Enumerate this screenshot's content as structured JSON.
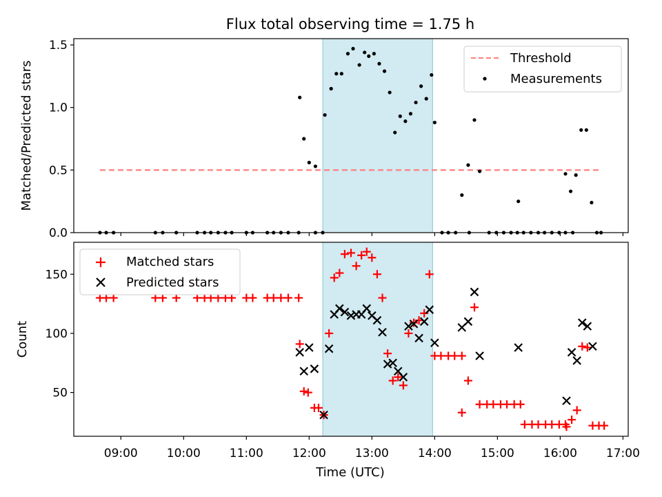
{
  "chart_data": [
    {
      "type": "scatter",
      "title": "Flux total observing time = 1.75 h",
      "xlabel": "",
      "ylabel": "Matched/Predicted stars",
      "ylim": [
        0,
        1.55
      ],
      "yticks": [
        "0.0",
        "0.5",
        "1.0",
        "1.5"
      ],
      "highlight_span": [
        "12:13",
        "13:58"
      ],
      "legend": {
        "position": "upper-right",
        "entries": [
          "Threshold",
          "Measurements"
        ]
      },
      "threshold": {
        "name": "Threshold",
        "value": 0.5,
        "x_start": "08:40",
        "x_end": "16:38",
        "color": "#ff7f7f",
        "style": "dashed"
      },
      "series": [
        {
          "name": "Measurements",
          "color": "#000000",
          "points": [
            [
              "08:40",
              0
            ],
            [
              "08:46",
              0
            ],
            [
              "08:53",
              0
            ],
            [
              "09:33",
              0
            ],
            [
              "09:40",
              0
            ],
            [
              "09:53",
              0
            ],
            [
              "10:13",
              0
            ],
            [
              "10:20",
              0
            ],
            [
              "10:26",
              0
            ],
            [
              "10:33",
              0
            ],
            [
              "10:40",
              0
            ],
            [
              "10:46",
              0
            ],
            [
              "11:00",
              0
            ],
            [
              "11:06",
              0
            ],
            [
              "11:20",
              0
            ],
            [
              "11:26",
              0
            ],
            [
              "11:33",
              0
            ],
            [
              "11:40",
              0
            ],
            [
              "11:50",
              0
            ],
            [
              "12:06",
              0
            ],
            [
              "12:13",
              0
            ],
            [
              "11:51",
              1.08
            ],
            [
              "11:55",
              0.75
            ],
            [
              "11:60",
              0.56
            ],
            [
              "12:06",
              0.53
            ],
            [
              "12:15",
              0.94
            ],
            [
              "12:21",
              1.15
            ],
            [
              "12:26",
              1.27
            ],
            [
              "12:31",
              1.27
            ],
            [
              "12:37",
              1.43
            ],
            [
              "12:42",
              1.47
            ],
            [
              "12:48",
              1.34
            ],
            [
              "12:53",
              1.44
            ],
            [
              "12:57",
              1.41
            ],
            [
              "13:02",
              1.43
            ],
            [
              "13:07",
              1.35
            ],
            [
              "13:12",
              1.29
            ],
            [
              "13:17",
              1.12
            ],
            [
              "13:22",
              0.8
            ],
            [
              "13:27",
              0.93
            ],
            [
              "13:32",
              0.89
            ],
            [
              "13:37",
              0.95
            ],
            [
              "13:42",
              1.04
            ],
            [
              "13:47",
              1.17
            ],
            [
              "13:52",
              1.07
            ],
            [
              "13:57",
              1.26
            ],
            [
              "14:00",
              0.88
            ],
            [
              "14:07",
              0
            ],
            [
              "14:13",
              0
            ],
            [
              "14:20",
              0
            ],
            [
              "14:26",
              0.3
            ],
            [
              "14:32",
              0.54
            ],
            [
              "14:33",
              0
            ],
            [
              "14:38",
              0.9
            ],
            [
              "14:43",
              0.49
            ],
            [
              "14:52",
              0
            ],
            [
              "14:59",
              0
            ],
            [
              "15:06",
              0
            ],
            [
              "15:13",
              0
            ],
            [
              "15:19",
              0
            ],
            [
              "15:25",
              0
            ],
            [
              "15:32",
              0
            ],
            [
              "15:20",
              0.25
            ],
            [
              "15:39",
              0
            ],
            [
              "15:45",
              0
            ],
            [
              "15:52",
              0
            ],
            [
              "15:59",
              0
            ],
            [
              "16:05",
              0
            ],
            [
              "16:12",
              0
            ],
            [
              "16:05",
              0.47
            ],
            [
              "16:10",
              0.33
            ],
            [
              "16:15",
              0.46
            ],
            [
              "16:20",
              0.82
            ],
            [
              "16:25",
              0.82
            ],
            [
              "16:30",
              0.24
            ],
            [
              "16:35",
              0
            ],
            [
              "16:39",
              0
            ]
          ]
        }
      ]
    },
    {
      "type": "scatter",
      "title": "",
      "xlabel": "Time (UTC)",
      "ylabel": "Count",
      "ylim": [
        13,
        177
      ],
      "yticks": [
        "50",
        "100",
        "150"
      ],
      "xticks": [
        "09:00",
        "10:00",
        "11:00",
        "12:00",
        "13:00",
        "14:00",
        "15:00",
        "16:00",
        "17:00"
      ],
      "highlight_span": [
        "12:13",
        "13:58"
      ],
      "legend": {
        "position": "upper-left",
        "entries": [
          "Matched stars",
          "Predicted stars"
        ]
      },
      "series": [
        {
          "name": "Matched stars",
          "marker": "plus",
          "color": "#ff0000",
          "points": [
            [
              "08:40",
              130
            ],
            [
              "08:46",
              130
            ],
            [
              "08:53",
              130
            ],
            [
              "09:33",
              130
            ],
            [
              "09:40",
              130
            ],
            [
              "09:53",
              130
            ],
            [
              "10:13",
              130
            ],
            [
              "10:20",
              130
            ],
            [
              "10:26",
              130
            ],
            [
              "10:33",
              130
            ],
            [
              "10:40",
              130
            ],
            [
              "10:46",
              130
            ],
            [
              "11:00",
              130
            ],
            [
              "11:06",
              130
            ],
            [
              "11:20",
              130
            ],
            [
              "11:26",
              130
            ],
            [
              "11:33",
              130
            ],
            [
              "11:40",
              130
            ],
            [
              "11:50",
              130
            ],
            [
              "11:51",
              91
            ],
            [
              "11:55",
              51
            ],
            [
              "11:59",
              50
            ],
            [
              "12:05",
              37
            ],
            [
              "12:09",
              37
            ],
            [
              "12:14",
              31
            ],
            [
              "12:19",
              100
            ],
            [
              "12:24",
              147
            ],
            [
              "12:29",
              151
            ],
            [
              "12:34",
              167
            ],
            [
              "12:40",
              168
            ],
            [
              "12:45",
              157
            ],
            [
              "12:50",
              166
            ],
            [
              "12:55",
              169
            ],
            [
              "13:00",
              164
            ],
            [
              "13:05",
              150
            ],
            [
              "13:10",
              130
            ],
            [
              "13:15",
              83
            ],
            [
              "13:20",
              60
            ],
            [
              "13:25",
              63
            ],
            [
              "13:30",
              56
            ],
            [
              "13:35",
              100
            ],
            [
              "13:40",
              109
            ],
            [
              "13:45",
              111
            ],
            [
              "13:50",
              117
            ],
            [
              "13:55",
              150
            ],
            [
              "14:00",
              81
            ],
            [
              "14:06",
              81
            ],
            [
              "14:13",
              81
            ],
            [
              "14:19",
              81
            ],
            [
              "14:26",
              81
            ],
            [
              "14:26",
              33
            ],
            [
              "14:32",
              60
            ],
            [
              "14:38",
              122
            ],
            [
              "14:43",
              40
            ],
            [
              "14:50",
              40
            ],
            [
              "14:56",
              40
            ],
            [
              "15:03",
              40
            ],
            [
              "15:09",
              40
            ],
            [
              "15:16",
              40
            ],
            [
              "15:22",
              40
            ],
            [
              "15:26",
              23
            ],
            [
              "15:33",
              23
            ],
            [
              "15:39",
              23
            ],
            [
              "15:46",
              23
            ],
            [
              "15:52",
              23
            ],
            [
              "15:59",
              23
            ],
            [
              "16:05",
              23
            ],
            [
              "16:06",
              21
            ],
            [
              "16:11",
              27
            ],
            [
              "16:16",
              35
            ],
            [
              "16:21",
              89
            ],
            [
              "16:26",
              88
            ],
            [
              "16:31",
              22
            ],
            [
              "16:37",
              22
            ],
            [
              "16:42",
              22
            ]
          ]
        },
        {
          "name": "Predicted stars",
          "marker": "x",
          "color": "#000000",
          "points": [
            [
              "11:51",
              84
            ],
            [
              "11:55",
              68
            ],
            [
              "12:00",
              88
            ],
            [
              "12:05",
              70
            ],
            [
              "12:14",
              31
            ],
            [
              "12:19",
              87
            ],
            [
              "12:24",
              116
            ],
            [
              "12:29",
              121
            ],
            [
              "12:34",
              118
            ],
            [
              "12:40",
              115
            ],
            [
              "12:45",
              116
            ],
            [
              "12:50",
              116
            ],
            [
              "12:55",
              121
            ],
            [
              "13:00",
              115
            ],
            [
              "13:05",
              111
            ],
            [
              "13:10",
              101
            ],
            [
              "13:15",
              74
            ],
            [
              "13:20",
              75
            ],
            [
              "13:25",
              68
            ],
            [
              "13:30",
              63
            ],
            [
              "13:35",
              106
            ],
            [
              "13:40",
              108
            ],
            [
              "13:45",
              96
            ],
            [
              "13:50",
              110
            ],
            [
              "13:55",
              120
            ],
            [
              "14:00",
              92
            ],
            [
              "14:26",
              105
            ],
            [
              "14:32",
              110
            ],
            [
              "14:38",
              135
            ],
            [
              "14:43",
              81
            ],
            [
              "15:20",
              88
            ],
            [
              "16:06",
              43
            ],
            [
              "16:11",
              84
            ],
            [
              "16:16",
              77
            ],
            [
              "16:21",
              109
            ],
            [
              "16:26",
              106
            ],
            [
              "16:31",
              89
            ]
          ]
        }
      ]
    }
  ]
}
